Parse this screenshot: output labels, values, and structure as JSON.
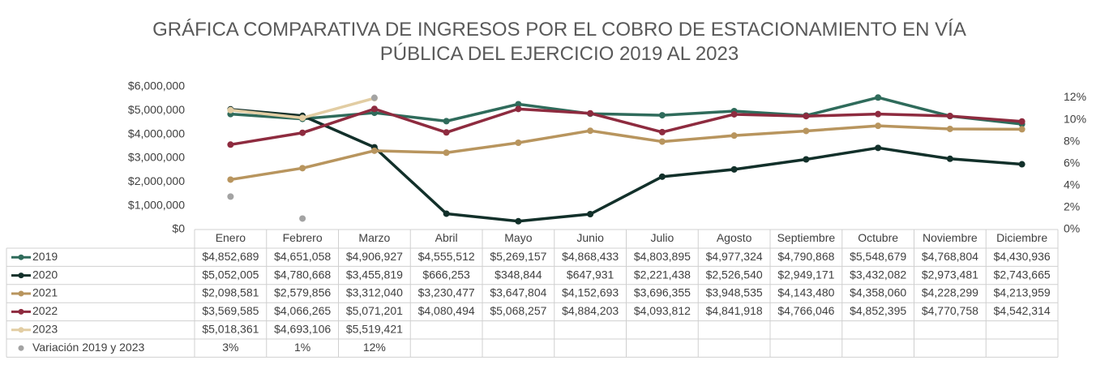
{
  "chart_data": {
    "type": "line",
    "title": "GRÁFICA COMPARATIVA DE INGRESOS POR EL COBRO DE ESTACIONAMIENTO EN VÍA PÚBLICA DEL EJERCICIO 2019 AL 2023",
    "categories": [
      "Enero",
      "Febrero",
      "Marzo",
      "Abril",
      "Mayo",
      "Junio",
      "Julio",
      "Agosto",
      "Septiembre",
      "Octubre",
      "Noviembre",
      "Diciembre"
    ],
    "ylim": [
      0,
      6000000
    ],
    "yticks": [
      {
        "value": 0,
        "label": "$0"
      },
      {
        "value": 1000000,
        "label": "$1,000,000"
      },
      {
        "value": 2000000,
        "label": "$2,000,000"
      },
      {
        "value": 3000000,
        "label": "$3,000,000"
      },
      {
        "value": 4000000,
        "label": "$4,000,000"
      },
      {
        "value": 5000000,
        "label": "$5,000,000"
      },
      {
        "value": 6000000,
        "label": "$6,000,000"
      }
    ],
    "y2lim": [
      0,
      13
    ],
    "y2ticks": [
      {
        "value": 0,
        "label": "0%"
      },
      {
        "value": 2,
        "label": "2%"
      },
      {
        "value": 4,
        "label": "4%"
      },
      {
        "value": 6,
        "label": "6%"
      },
      {
        "value": 8,
        "label": "8%"
      },
      {
        "value": 10,
        "label": "10%"
      },
      {
        "value": 12,
        "label": "12%"
      }
    ],
    "series": [
      {
        "name": "2019",
        "color": "#2f6b5b",
        "values": [
          4852689,
          4651058,
          4906927,
          4555512,
          5269157,
          4868433,
          4803895,
          4977324,
          4790868,
          5548679,
          4768804,
          4430936
        ],
        "value_labels": [
          "$4,852,689",
          "$4,651,058",
          "$4,906,927",
          "$4,555,512",
          "$5,269,157",
          "$4,868,433",
          "$4,803,895",
          "$4,977,324",
          "$4,790,868",
          "$5,548,679",
          "$4,768,804",
          "$4,430,936"
        ]
      },
      {
        "name": "2020",
        "color": "#12302a",
        "values": [
          5052005,
          4780668,
          3455819,
          666253,
          348844,
          647931,
          2221438,
          2526540,
          2949171,
          3432082,
          2973481,
          2743665
        ],
        "value_labels": [
          "$5,052,005",
          "$4,780,668",
          "$3,455,819",
          "$666,253",
          "$348,844",
          "$647,931",
          "$2,221,438",
          "$2,526,540",
          "$2,949,171",
          "$3,432,082",
          "$2,973,481",
          "$2,743,665"
        ]
      },
      {
        "name": "2021",
        "color": "#b8955e",
        "values": [
          2098581,
          2579856,
          3312040,
          3230477,
          3647804,
          4152693,
          3696355,
          3948535,
          4143480,
          4358060,
          4228299,
          4213959
        ],
        "value_labels": [
          "$2,098,581",
          "$2,579,856",
          "$3,312,040",
          "$3,230,477",
          "$3,647,804",
          "$4,152,693",
          "$3,696,355",
          "$3,948,535",
          "$4,143,480",
          "$4,358,060",
          "$4,228,299",
          "$4,213,959"
        ]
      },
      {
        "name": "2022",
        "color": "#8e2b3f",
        "values": [
          3569585,
          4066265,
          5071201,
          4080494,
          5068257,
          4884203,
          4093812,
          4841918,
          4766046,
          4852395,
          4770758,
          4542314
        ],
        "value_labels": [
          "$3,569,585",
          "$4,066,265",
          "$5,071,201",
          "$4,080,494",
          "$5,068,257",
          "$4,884,203",
          "$4,093,812",
          "$4,841,918",
          "$4,766,046",
          "$4,852,395",
          "$4,770,758",
          "$4,542,314"
        ]
      },
      {
        "name": "2023",
        "color": "#e2cda3",
        "values": [
          5018361,
          4693106,
          5519421,
          null,
          null,
          null,
          null,
          null,
          null,
          null,
          null,
          null
        ],
        "value_labels": [
          "$5,018,361",
          "$4,693,106",
          "$5,519,421",
          null,
          null,
          null,
          null,
          null,
          null,
          null,
          null,
          null
        ]
      },
      {
        "name": "Variación 2019 y 2023",
        "color": "#a3a3a3",
        "type": "scatter",
        "axis": "y2",
        "values": [
          3,
          1,
          12,
          null,
          null,
          null,
          null,
          null,
          null,
          null,
          null,
          null
        ],
        "value_labels": [
          "3%",
          "1%",
          "12%",
          null,
          null,
          null,
          null,
          null,
          null,
          null,
          null,
          null
        ]
      }
    ]
  }
}
